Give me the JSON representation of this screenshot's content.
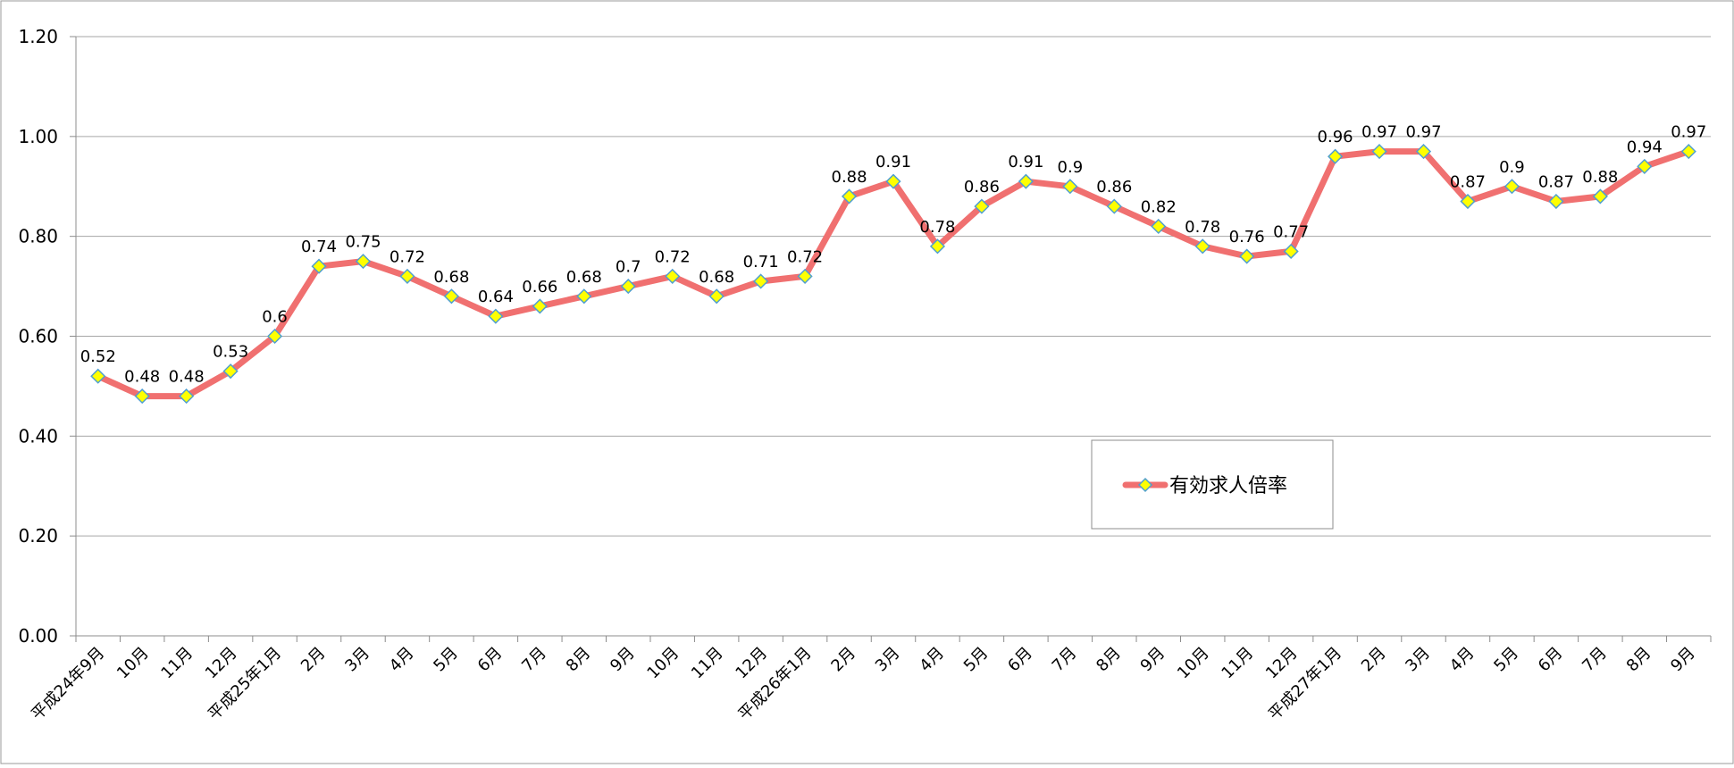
{
  "chart_data": {
    "type": "line",
    "title": "",
    "xlabel": "",
    "ylabel": "",
    "ylim": [
      0,
      1.2
    ],
    "y_ticks": [
      "0.00",
      "0.20",
      "0.40",
      "0.60",
      "0.80",
      "1.00",
      "1.20"
    ],
    "grid": true,
    "legend_position": "center-right",
    "categories": [
      "平成24年9月",
      "10月",
      "11月",
      "12月",
      "平成25年1月",
      "2月",
      "3月",
      "4月",
      "5月",
      "6月",
      "7月",
      "8月",
      "9月",
      "10月",
      "11月",
      "12月",
      "平成26年1月",
      "2月",
      "3月",
      "4月",
      "5月",
      "6月",
      "7月",
      "8月",
      "9月",
      "10月",
      "11月",
      "12月",
      "平成27年1月",
      "2月",
      "3月",
      "4月",
      "5月",
      "6月",
      "7月",
      "8月",
      "9月"
    ],
    "series": [
      {
        "name": "有効求人倍率",
        "color": "#f07070",
        "marker_fill": "#ffff00",
        "marker_stroke": "#4f9fcf",
        "values": [
          0.52,
          0.48,
          0.48,
          0.53,
          0.6,
          0.74,
          0.75,
          0.72,
          0.68,
          0.64,
          0.66,
          0.68,
          0.7,
          0.72,
          0.68,
          0.71,
          0.72,
          0.88,
          0.91,
          0.78,
          0.86,
          0.91,
          0.9,
          0.86,
          0.82,
          0.78,
          0.76,
          0.77,
          0.96,
          0.97,
          0.97,
          0.87,
          0.9,
          0.87,
          0.88,
          0.94,
          0.97
        ],
        "labels": [
          "0.52",
          "0.48",
          "0.48",
          "0.53",
          "0.6",
          "0.74",
          "0.75",
          "0.72",
          "0.68",
          "0.64",
          "0.66",
          "0.68",
          "0.7",
          "0.72",
          "0.68",
          "0.71",
          "0.72",
          "0.88",
          "0.91",
          "0.78",
          "0.86",
          "0.91",
          "0.9",
          "0.86",
          "0.82",
          "0.78",
          "0.76",
          "0.77",
          "0.96",
          "0.97",
          "0.97",
          "0.87",
          "0.9",
          "0.87",
          "0.88",
          "0.94",
          "0.97"
        ]
      }
    ]
  }
}
